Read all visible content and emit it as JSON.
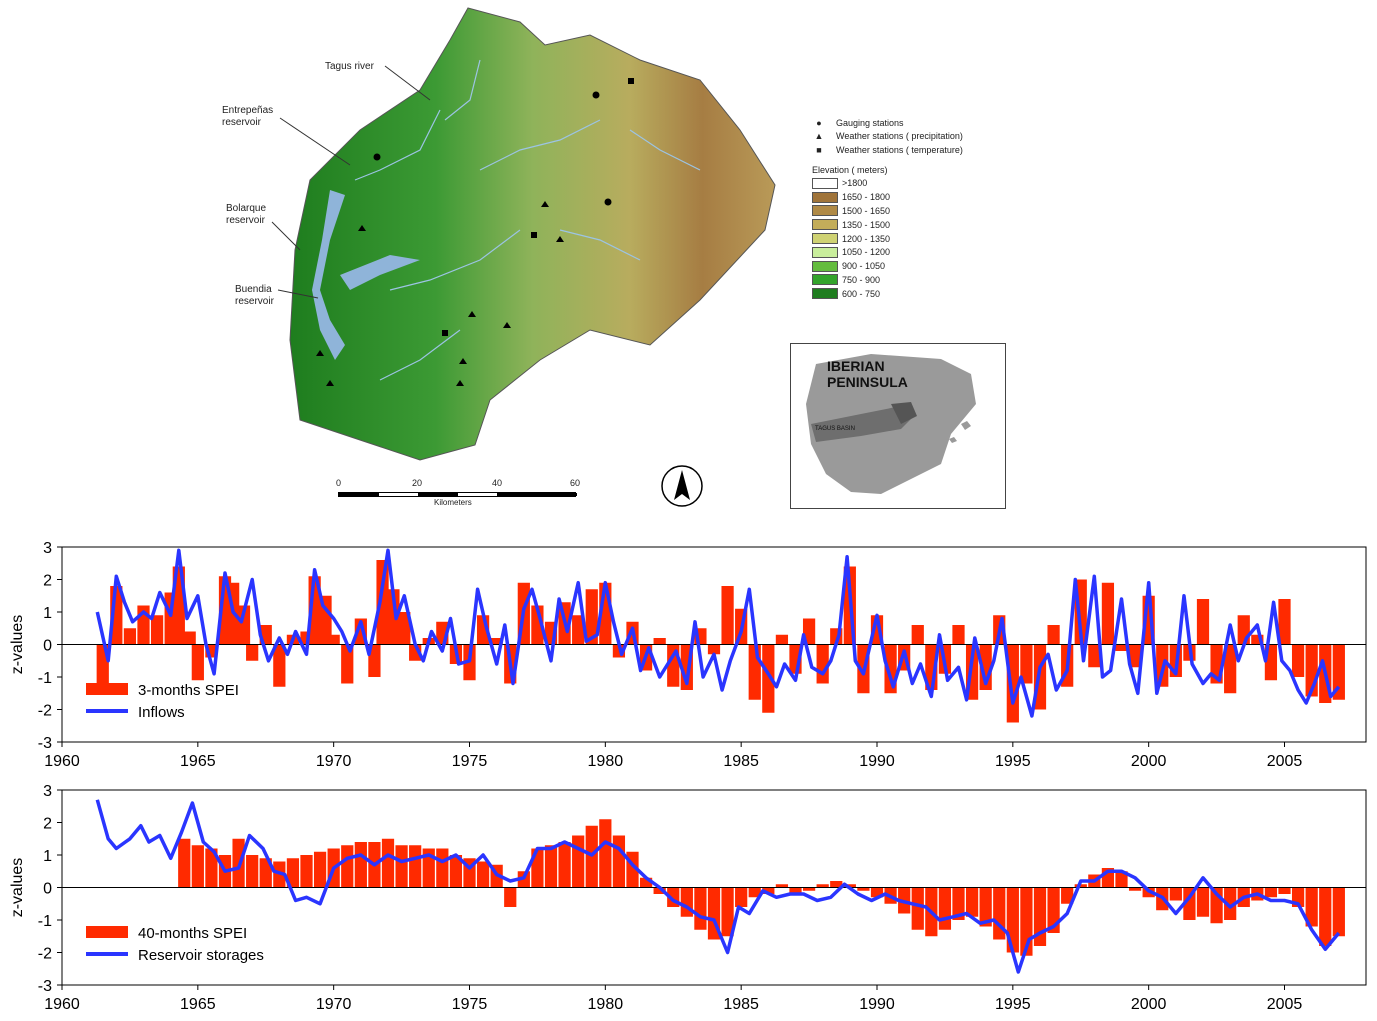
{
  "map": {
    "labels": {
      "tagus_river": "Tagus river",
      "entrepenas": [
        "Entrepeñas",
        "reservoir"
      ],
      "bolarque": [
        "Bolarque",
        "reservoir"
      ],
      "buendia": [
        "Buendia",
        "reservoir"
      ]
    },
    "legend": {
      "symbols": [
        {
          "icon": "circle-icon",
          "label": "Gauging stations"
        },
        {
          "icon": "triangle-icon",
          "label": "Weather stations ( precipitation)"
        },
        {
          "icon": "square-icon",
          "label": "Weather stations ( temperature)"
        }
      ],
      "elevation_title": "Elevation ( meters)",
      "elevation_classes": [
        {
          "label": ">1800",
          "color": "#ffffff"
        },
        {
          "label": "1650 - 1800",
          "color": "#a0743a"
        },
        {
          "label": "1500 - 1650",
          "color": "#b08a46"
        },
        {
          "label": "1350 - 1500",
          "color": "#c3ad5a"
        },
        {
          "label": "1200 - 1350",
          "color": "#cfd273"
        },
        {
          "label": "1050 - 1200",
          "color": "#c9ee9c"
        },
        {
          "label": "900 - 1050",
          "color": "#64bc3e"
        },
        {
          "label": "750 - 900",
          "color": "#33a32b"
        },
        {
          "label": "600 - 750",
          "color": "#1f7d1f"
        }
      ]
    },
    "scale": {
      "ticks": [
        "0",
        "20",
        "40",
        "60"
      ],
      "unit": "Kilometers"
    },
    "inset": {
      "title_line1": "IBERIAN",
      "title_line2": "PENINSULA",
      "basin_label": "TAGUS BASIN"
    }
  },
  "chart_data": [
    {
      "type": "bar+line",
      "ylabel": "z-values",
      "xlabel": "",
      "xlim": [
        1960,
        2008
      ],
      "ylim": [
        -3,
        3
      ],
      "xticks": [
        "1960",
        "1965",
        "1970",
        "1975",
        "1980",
        "1985",
        "1990",
        "1995",
        "2000",
        "2005"
      ],
      "yticks": [
        "3",
        "2",
        "1",
        "0",
        "-1",
        "-2",
        "-3"
      ],
      "legend_position": "bottom-left",
      "bar_series": {
        "name": "3-months SPEI",
        "color": "#ff2a00",
        "x": [
          1961.5,
          1962,
          1962.5,
          1963,
          1963.5,
          1964,
          1964.3,
          1964.7,
          1965,
          1965.5,
          1966,
          1966.3,
          1966.7,
          1967,
          1967.5,
          1968,
          1968.5,
          1969,
          1969.3,
          1969.7,
          1970,
          1970.5,
          1971,
          1971.5,
          1971.8,
          1972.2,
          1972.6,
          1973,
          1973.5,
          1974,
          1974.5,
          1975,
          1975.5,
          1976,
          1976.5,
          1977,
          1977.5,
          1978,
          1978.5,
          1979,
          1979.5,
          1980,
          1980.5,
          1981,
          1981.5,
          1982,
          1982.5,
          1983,
          1983.5,
          1984,
          1984.5,
          1985,
          1985.5,
          1986,
          1986.5,
          1987,
          1987.5,
          1988,
          1988.5,
          1989,
          1989.5,
          1990,
          1990.5,
          1991,
          1991.5,
          1992,
          1992.5,
          1993,
          1993.5,
          1994,
          1994.5,
          1995,
          1995.5,
          1996,
          1996.5,
          1997,
          1997.5,
          1998,
          1998.5,
          1999,
          1999.5,
          2000,
          2000.5,
          2001,
          2001.5,
          2002,
          2002.5,
          2003,
          2003.5,
          2004,
          2004.5,
          2005,
          2005.5,
          2006,
          2006.5,
          2007
        ],
        "values": [
          -1.2,
          1.8,
          0.5,
          1.2,
          0.9,
          1.6,
          2.4,
          0.4,
          -1.1,
          -0.4,
          2.1,
          1.9,
          1.2,
          -0.5,
          0.6,
          -1.3,
          0.3,
          0.4,
          2.1,
          1.5,
          0.3,
          -1.2,
          0.8,
          -1.0,
          2.6,
          1.7,
          1.0,
          -0.5,
          0.2,
          0.7,
          -0.6,
          -1.1,
          0.9,
          0.2,
          -1.2,
          1.9,
          1.2,
          0.7,
          1.3,
          0.9,
          1.7,
          1.9,
          -0.4,
          0.7,
          -0.8,
          0.2,
          -1.3,
          -1.4,
          0.5,
          -0.3,
          1.8,
          1.1,
          -1.7,
          -2.1,
          0.3,
          -0.9,
          0.8,
          -1.2,
          0.5,
          2.4,
          -1.5,
          0.9,
          -1.5,
          -0.8,
          0.6,
          -1.4,
          -0.9,
          0.6,
          -1.7,
          -1.4,
          0.9,
          -2.4,
          -1.2,
          -2.0,
          0.6,
          -1.3,
          2.0,
          -0.7,
          1.9,
          -0.2,
          -0.7,
          1.5,
          -1.3,
          -1.0,
          -0.5,
          1.4,
          -1.2,
          -1.5,
          0.9,
          0.3,
          -1.1,
          1.4,
          -1.0,
          -1.6,
          -1.8,
          -1.7
        ]
      },
      "line_series": {
        "name": "Inflows",
        "color": "#2a35ff",
        "x": [
          1961.3,
          1961.7,
          1962.0,
          1962.3,
          1962.6,
          1963.0,
          1963.3,
          1963.6,
          1964.0,
          1964.3,
          1964.6,
          1965.0,
          1965.3,
          1965.6,
          1966.0,
          1966.3,
          1966.6,
          1967.0,
          1967.3,
          1967.6,
          1968.0,
          1968.3,
          1968.6,
          1969.0,
          1969.3,
          1969.6,
          1970.0,
          1970.3,
          1970.6,
          1971.0,
          1971.3,
          1971.7,
          1972.0,
          1972.3,
          1972.6,
          1973.0,
          1973.3,
          1973.6,
          1974.0,
          1974.3,
          1974.6,
          1975.0,
          1975.3,
          1975.6,
          1976.0,
          1976.3,
          1976.6,
          1977.0,
          1977.3,
          1977.6,
          1978.0,
          1978.3,
          1978.6,
          1979.0,
          1979.3,
          1979.7,
          1980.0,
          1980.3,
          1980.6,
          1981.0,
          1981.3,
          1981.6,
          1982.0,
          1982.3,
          1982.6,
          1983.0,
          1983.3,
          1983.6,
          1984.0,
          1984.3,
          1984.6,
          1985.0,
          1985.3,
          1985.6,
          1986.0,
          1986.3,
          1986.6,
          1987.0,
          1987.3,
          1987.6,
          1988.0,
          1988.3,
          1988.6,
          1988.9,
          1989.2,
          1989.5,
          1990.0,
          1990.3,
          1990.6,
          1991.0,
          1991.3,
          1991.6,
          1992.0,
          1992.3,
          1992.6,
          1993.0,
          1993.3,
          1993.6,
          1994.0,
          1994.3,
          1994.6,
          1995.0,
          1995.3,
          1995.7,
          1996.0,
          1996.3,
          1996.6,
          1997.0,
          1997.3,
          1997.6,
          1998.0,
          1998.3,
          1998.6,
          1999.0,
          1999.3,
          1999.6,
          2000.0,
          2000.3,
          2000.6,
          2001.0,
          2001.3,
          2001.6,
          2002.0,
          2002.3,
          2002.6,
          2003.0,
          2003.3,
          2003.6,
          2004.0,
          2004.3,
          2004.6,
          2004.9,
          2005.2,
          2005.5,
          2005.8,
          2006.1,
          2006.4,
          2006.7,
          2007.0
        ],
        "values": [
          1.0,
          -0.5,
          2.1,
          1.3,
          0.7,
          1.0,
          0.8,
          1.6,
          0.9,
          2.9,
          0.8,
          1.5,
          0.0,
          -0.9,
          2.2,
          1.0,
          0.7,
          2.0,
          0.3,
          -0.5,
          0.2,
          -0.3,
          0.4,
          -0.3,
          2.3,
          1.2,
          0.8,
          0.4,
          -0.2,
          0.7,
          -0.3,
          1.3,
          2.9,
          0.8,
          1.5,
          0.0,
          -0.5,
          0.4,
          -0.2,
          0.8,
          -0.6,
          -0.5,
          1.7,
          0.6,
          -0.6,
          0.6,
          -1.2,
          1.1,
          1.7,
          0.8,
          -0.5,
          1.4,
          0.4,
          1.9,
          0.1,
          0.3,
          1.9,
          0.7,
          -0.3,
          0.5,
          -0.8,
          -0.1,
          -1.0,
          -0.6,
          -0.2,
          -1.2,
          0.7,
          -1.0,
          -0.3,
          -1.4,
          -0.5,
          0.4,
          1.7,
          -0.4,
          -0.9,
          -1.3,
          -0.6,
          -1.1,
          0.3,
          -0.7,
          -0.9,
          -0.5,
          0.3,
          2.7,
          -0.5,
          -0.9,
          0.9,
          -0.5,
          -1.3,
          -0.2,
          -1.2,
          -0.6,
          -1.6,
          0.3,
          -1.1,
          -0.7,
          -1.7,
          0.2,
          -1.2,
          -0.5,
          0.8,
          -1.8,
          -1.0,
          -2.2,
          -0.7,
          -0.3,
          -1.4,
          -0.8,
          2.0,
          -0.5,
          2.1,
          -1.0,
          -0.8,
          1.4,
          -0.6,
          -1.5,
          1.9,
          -1.5,
          -0.5,
          -0.9,
          1.5,
          -0.6,
          -1.2,
          -0.9,
          -1.1,
          0.6,
          -0.5,
          0.2,
          0.6,
          -0.5,
          1.3,
          -0.5,
          -0.8,
          -1.4,
          -1.8,
          -1.2,
          -0.5,
          -1.6,
          -1.3
        ]
      }
    },
    {
      "type": "bar+line",
      "ylabel": "z-values",
      "xlabel": "",
      "xlim": [
        1960,
        2008
      ],
      "ylim": [
        -3,
        3
      ],
      "xticks": [
        "1960",
        "1965",
        "1970",
        "1975",
        "1980",
        "1985",
        "1990",
        "1995",
        "2000",
        "2005"
      ],
      "yticks": [
        "3",
        "2",
        "1",
        "0",
        "-1",
        "-2",
        "-3"
      ],
      "legend_position": "bottom-left",
      "bar_series": {
        "name": "40-months SPEI",
        "color": "#ff2a00",
        "x": [
          1964.5,
          1965,
          1965.5,
          1966,
          1966.5,
          1967,
          1967.5,
          1968,
          1968.5,
          1969,
          1969.5,
          1970,
          1970.5,
          1971,
          1971.5,
          1972,
          1972.5,
          1973,
          1973.5,
          1974,
          1974.5,
          1975,
          1975.5,
          1976,
          1976.5,
          1977,
          1977.5,
          1978,
          1978.5,
          1979,
          1979.5,
          1980,
          1980.5,
          1981,
          1981.5,
          1982,
          1982.5,
          1983,
          1983.5,
          1984,
          1984.5,
          1985,
          1985.5,
          1986,
          1986.5,
          1987,
          1987.5,
          1988,
          1988.5,
          1989,
          1989.5,
          1990,
          1990.5,
          1991,
          1991.5,
          1992,
          1992.5,
          1993,
          1993.5,
          1994,
          1994.5,
          1995,
          1995.5,
          1996,
          1996.5,
          1997,
          1997.5,
          1998,
          1998.5,
          1999,
          1999.5,
          2000,
          2000.5,
          2001,
          2001.5,
          2002,
          2002.5,
          2003,
          2003.5,
          2004,
          2004.5,
          2005,
          2005.5,
          2006,
          2006.5,
          2007
        ],
        "values": [
          1.5,
          1.3,
          1.2,
          1.0,
          1.5,
          1.0,
          0.9,
          0.8,
          0.9,
          1.0,
          1.1,
          1.2,
          1.3,
          1.4,
          1.4,
          1.5,
          1.3,
          1.3,
          1.2,
          1.2,
          1.0,
          0.9,
          0.8,
          0.7,
          -0.6,
          0.5,
          1.2,
          1.3,
          1.4,
          1.6,
          1.9,
          2.1,
          1.6,
          1.1,
          0.3,
          -0.2,
          -0.6,
          -0.9,
          -1.3,
          -1.6,
          -1.5,
          -0.6,
          -0.3,
          -0.2,
          0.1,
          -0.2,
          -0.1,
          0.1,
          0.2,
          0.1,
          -0.1,
          -0.3,
          -0.5,
          -0.8,
          -1.3,
          -1.5,
          -1.3,
          -1.0,
          -0.9,
          -1.2,
          -1.6,
          -2.0,
          -2.1,
          -1.8,
          -1.4,
          -0.5,
          0.1,
          0.4,
          0.6,
          0.5,
          -0.1,
          -0.3,
          -0.7,
          -0.4,
          -1.0,
          -0.9,
          -1.1,
          -1.0,
          -0.6,
          -0.4,
          -0.3,
          -0.2,
          -0.6,
          -1.2,
          -1.8,
          -1.5
        ]
      },
      "line_series": {
        "name": "Reservoir storages",
        "color": "#2a35ff",
        "x": [
          1961.3,
          1961.7,
          1962.0,
          1962.5,
          1962.9,
          1963.2,
          1963.6,
          1964.0,
          1964.4,
          1964.8,
          1965.2,
          1965.6,
          1966.0,
          1966.5,
          1966.9,
          1967.4,
          1967.8,
          1968.2,
          1968.6,
          1969.0,
          1969.5,
          1970.0,
          1970.5,
          1971.0,
          1971.5,
          1972.0,
          1972.5,
          1973.0,
          1973.5,
          1974.0,
          1974.5,
          1975.0,
          1975.5,
          1976.0,
          1976.5,
          1977.0,
          1977.5,
          1978.0,
          1978.5,
          1979.0,
          1979.5,
          1980.0,
          1980.5,
          1981.0,
          1981.5,
          1982.0,
          1982.5,
          1983.0,
          1983.5,
          1984.0,
          1984.5,
          1984.9,
          1985.3,
          1985.8,
          1986.3,
          1986.8,
          1987.3,
          1987.8,
          1988.3,
          1988.8,
          1989.3,
          1989.8,
          1990.3,
          1990.8,
          1991.3,
          1991.8,
          1992.3,
          1992.8,
          1993.3,
          1993.8,
          1994.3,
          1994.8,
          1995.2,
          1995.6,
          1996.0,
          1996.5,
          1997.0,
          1997.5,
          1998.0,
          1998.5,
          1999.0,
          1999.5,
          2000.0,
          2000.5,
          2001.0,
          2001.5,
          2002.0,
          2002.5,
          2003.0,
          2003.5,
          2004.0,
          2004.5,
          2005.0,
          2005.5,
          2006.0,
          2006.5,
          2007.0
        ],
        "values": [
          2.7,
          1.5,
          1.2,
          1.5,
          1.9,
          1.4,
          1.6,
          0.9,
          1.7,
          2.6,
          1.4,
          1.1,
          0.5,
          0.6,
          1.6,
          1.2,
          0.5,
          0.4,
          -0.4,
          -0.3,
          -0.5,
          0.6,
          0.9,
          1.0,
          0.7,
          1.0,
          0.8,
          0.9,
          1.0,
          0.8,
          1.0,
          0.6,
          1.0,
          0.4,
          0.2,
          0.3,
          1.2,
          1.2,
          1.4,
          1.2,
          1.0,
          1.4,
          1.2,
          0.7,
          0.3,
          0.0,
          -0.4,
          -0.6,
          -0.9,
          -1.0,
          -2.0,
          -0.6,
          -0.8,
          -0.1,
          -0.3,
          -0.2,
          -0.2,
          -0.4,
          -0.3,
          0.1,
          -0.2,
          -0.4,
          -0.2,
          -0.4,
          -0.5,
          -0.6,
          -1.0,
          -0.9,
          -0.8,
          -1.1,
          -1.0,
          -1.4,
          -2.6,
          -1.6,
          -1.4,
          -1.2,
          -0.8,
          0.2,
          0.2,
          0.5,
          0.5,
          0.3,
          -0.1,
          -0.3,
          -0.8,
          -0.3,
          0.3,
          -0.2,
          -0.6,
          -0.3,
          -0.2,
          -0.4,
          -0.4,
          -0.5,
          -1.3,
          -1.9,
          -1.4
        ]
      }
    }
  ]
}
